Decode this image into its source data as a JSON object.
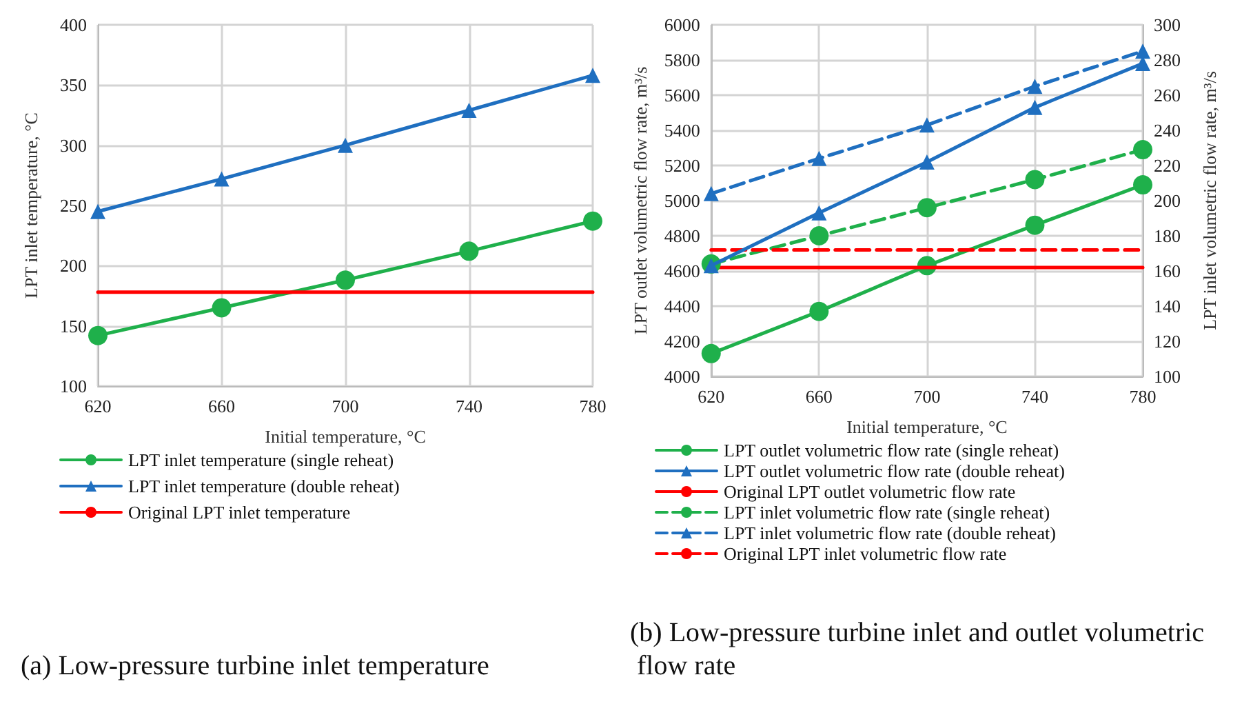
{
  "chart_data": [
    {
      "type": "line",
      "title": "(a) Low-pressure turbine inlet temperature",
      "xlabel": "Initial temperature, °C",
      "ylabel": "LPT inlet temperature, °C",
      "x": [
        620,
        660,
        700,
        740,
        780
      ],
      "xlim": [
        620,
        780
      ],
      "xticks": [
        620,
        660,
        700,
        740,
        780
      ],
      "ylim": [
        100,
        400
      ],
      "yticks": [
        100,
        150,
        200,
        250,
        300,
        350,
        400
      ],
      "grid": true,
      "legend": "bottom",
      "series": [
        {
          "name": "LPT inlet temperature (single reheat)",
          "color": "#1fb04b",
          "values": [
            142,
            165,
            188,
            212,
            237
          ],
          "marker": "circle",
          "line_style": "solid"
        },
        {
          "name": "LPT inlet temperature (double reheat)",
          "color": "#1f6fc0",
          "values": [
            245,
            272,
            300,
            329,
            358
          ],
          "marker": "triangle",
          "line_style": "solid"
        },
        {
          "name": "Original LPT inlet temperature",
          "color": "#ff0000",
          "values": [
            178,
            178,
            178,
            178,
            178
          ],
          "marker": "none",
          "line_style": "solid"
        }
      ]
    },
    {
      "type": "line",
      "title": "(b) Low-pressure turbine inlet and outlet volumetric flow rate",
      "xlabel": "Initial temperature, °C",
      "ylabel": "LPT outlet volumetric flow rate, m³/s",
      "y2label": "LPT inlet volumetric flow rate, m³/s",
      "x": [
        620,
        660,
        700,
        740,
        780
      ],
      "xlim": [
        620,
        780
      ],
      "xticks": [
        620,
        660,
        700,
        740,
        780
      ],
      "ylim": [
        4000,
        6000
      ],
      "yticks": [
        4000,
        4200,
        4400,
        4600,
        4800,
        5000,
        5200,
        5400,
        5600,
        5800,
        6000
      ],
      "y2lim": [
        100,
        300
      ],
      "y2ticks": [
        100,
        120,
        140,
        160,
        180,
        200,
        220,
        240,
        260,
        280,
        300
      ],
      "grid": true,
      "legend": "bottom",
      "series": [
        {
          "name": "LPT outlet volumetric flow rate (single reheat)",
          "color": "#1fb04b",
          "values": [
            4130,
            4370,
            4630,
            4860,
            5090
          ],
          "marker": "circle",
          "line_style": "solid"
        },
        {
          "name": "LPT outlet volumetric flow rate (double reheat)",
          "color": "#1f6fc0",
          "values": [
            4630,
            4930,
            5220,
            5530,
            5780
          ],
          "marker": "triangle",
          "line_style": "solid"
        },
        {
          "name": "Original LPT outlet volumetric flow rate",
          "color": "#ff0000",
          "values": [
            4620,
            4620,
            4620,
            4620,
            4620
          ],
          "marker": "none",
          "line_style": "solid"
        },
        {
          "name": "LPT inlet volumetric flow rate (single reheat)",
          "color": "#1fb04b",
          "values": [
            164,
            180,
            196,
            212,
            229
          ],
          "marker": "circle",
          "line_style": "dashed",
          "axis": "y2"
        },
        {
          "name": "LPT inlet volumetric flow rate (double reheat)",
          "color": "#1f6fc0",
          "values": [
            204,
            224,
            243,
            265,
            285
          ],
          "marker": "triangle",
          "line_style": "dashed",
          "axis": "y2"
        },
        {
          "name": "Original LPT inlet volumetric flow rate",
          "color": "#ff0000",
          "values": [
            172,
            172,
            172,
            172,
            172
          ],
          "marker": "none",
          "line_style": "dashed",
          "axis": "y2"
        }
      ]
    }
  ]
}
